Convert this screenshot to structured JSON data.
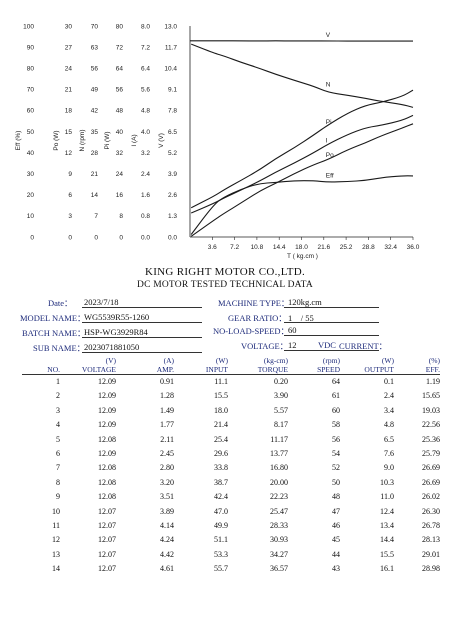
{
  "chart_data": {
    "type": "line",
    "x_axis": {
      "label": "T ( kg.cm )",
      "ticks": [
        "3.6",
        "7.2",
        "10.8",
        "14.4",
        "18.0",
        "21.6",
        "25.2",
        "28.8",
        "32.4",
        "36.0"
      ],
      "range": [
        0,
        36
      ]
    },
    "y_axes": [
      {
        "name": "Eff (%)",
        "ticks": [
          "0",
          "10",
          "20",
          "30",
          "40",
          "50",
          "60",
          "70",
          "80",
          "90",
          "100"
        ]
      },
      {
        "name": "Po (W)",
        "ticks": [
          "0",
          "3",
          "6",
          "9",
          "12",
          "15",
          "18",
          "21",
          "24",
          "27",
          "30"
        ]
      },
      {
        "name": "N (rpm)",
        "ticks": [
          "0",
          "7",
          "14",
          "21",
          "28",
          "35",
          "42",
          "49",
          "56",
          "63",
          "70"
        ]
      },
      {
        "name": "Pi (W)",
        "ticks": [
          "0",
          "8",
          "16",
          "24",
          "32",
          "40",
          "48",
          "56",
          "64",
          "72",
          "80"
        ]
      },
      {
        "name": "I (A)",
        "ticks": [
          "0.0",
          "0.8",
          "1.6",
          "2.4",
          "3.2",
          "4.0",
          "4.8",
          "5.6",
          "6.4",
          "7.2",
          "8.0"
        ]
      },
      {
        "name": "V (V)",
        "ticks": [
          "0.0",
          "1.3",
          "2.6",
          "3.9",
          "5.2",
          "6.5",
          "7.8",
          "9.1",
          "10.4",
          "11.7",
          "13.0"
        ]
      }
    ],
    "grid": false,
    "series": [
      {
        "name": "V",
        "axis": "V (V)",
        "x": [
          0.2,
          3.9,
          5.57,
          8.17,
          11.17,
          13.77,
          16.8,
          20.0,
          22.23,
          25.47,
          28.33,
          30.93,
          34.27,
          36.57
        ],
        "y": [
          12.09,
          12.09,
          12.09,
          12.09,
          12.08,
          12.09,
          12.08,
          12.08,
          12.08,
          12.07,
          12.07,
          12.07,
          12.07,
          12.07
        ]
      },
      {
        "name": "N",
        "axis": "N (rpm)",
        "x": [
          0.2,
          3.9,
          5.57,
          8.17,
          11.17,
          13.77,
          16.8,
          20.0,
          22.23,
          25.47,
          28.33,
          30.93,
          34.27,
          36.57
        ],
        "y": [
          64,
          61,
          60,
          58,
          56,
          54,
          52,
          50,
          48,
          47,
          46,
          45,
          44,
          43
        ]
      },
      {
        "name": "Pi",
        "axis": "Pi (W)",
        "x": [
          0.2,
          3.9,
          5.57,
          8.17,
          11.17,
          13.77,
          16.8,
          20.0,
          22.23,
          25.47,
          28.33,
          30.93,
          34.27,
          36.57
        ],
        "y": [
          11.1,
          15.5,
          18.0,
          21.4,
          25.4,
          29.6,
          33.8,
          38.7,
          42.4,
          47.0,
          49.9,
          51.1,
          53.3,
          55.7
        ]
      },
      {
        "name": "I",
        "axis": "I (A)",
        "x": [
          0.2,
          3.9,
          5.57,
          8.17,
          11.17,
          13.77,
          16.8,
          20.0,
          22.23,
          25.47,
          28.33,
          30.93,
          34.27,
          36.57
        ],
        "y": [
          0.91,
          1.28,
          1.49,
          1.77,
          2.11,
          2.45,
          2.8,
          3.2,
          3.51,
          3.89,
          4.14,
          4.24,
          4.42,
          4.61
        ]
      },
      {
        "name": "Po",
        "axis": "Po (W)",
        "x": [
          0.2,
          3.9,
          5.57,
          8.17,
          11.17,
          13.77,
          16.8,
          20.0,
          22.23,
          25.47,
          28.33,
          30.93,
          34.27,
          36.57
        ],
        "y": [
          0.1,
          2.4,
          3.4,
          4.8,
          6.5,
          7.6,
          9.0,
          10.3,
          11.0,
          12.4,
          13.4,
          14.4,
          15.5,
          16.1
        ]
      },
      {
        "name": "Eff",
        "axis": "Eff (%)",
        "x": [
          0.2,
          3.9,
          5.57,
          8.17,
          11.17,
          13.77,
          16.8,
          20.0,
          22.23,
          25.47,
          28.33,
          30.93,
          34.27,
          36.57
        ],
        "y": [
          1.19,
          15.65,
          19.03,
          22.56,
          25.36,
          25.79,
          26.69,
          26.69,
          26.02,
          26.3,
          26.78,
          28.13,
          29.01,
          28.98
        ]
      }
    ]
  },
  "header": {
    "company": "KING RIGHT MOTOR CO.,LTD.",
    "subtitle": "DC MOTOR TESTED TECHNICAL DATA"
  },
  "info": {
    "date_label": "Date：",
    "date_value": "2023/7/18",
    "model_label": "MODEL NAME：",
    "model_value": "WG5539R55-1260",
    "batch_label": "BATCH NAME：",
    "batch_value": "HSP-WG3929R84",
    "sub_label": "SUB NAME：",
    "sub_value": "2023071881050",
    "machine_label": "MACHINE TYPE：",
    "machine_value": "120kg.cm",
    "gear_label": "GEAR RATIO：",
    "gear_value": "1　/ 55",
    "noload_label": "NO-LOAD-SPEED：",
    "noload_value": "60",
    "voltage_label": "VOLTAGE：",
    "voltage_value": "12",
    "vdc_label": "VDC",
    "current_label": "CURRENT："
  },
  "table": {
    "units": [
      "(V)",
      "(A)",
      "(W)",
      "(kg-cm)",
      "(rpm)",
      "(W)",
      "(%)"
    ],
    "headers": [
      "NO.",
      "VOLTAGE",
      "AMP.",
      "INPUT",
      "TORQUE",
      "SPEED",
      "OUTPUT",
      "EFF."
    ],
    "rows": [
      [
        "1",
        "12.09",
        "0.91",
        "11.1",
        "0.20",
        "64",
        "0.1",
        "1.19"
      ],
      [
        "2",
        "12.09",
        "1.28",
        "15.5",
        "3.90",
        "61",
        "2.4",
        "15.65"
      ],
      [
        "3",
        "12.09",
        "1.49",
        "18.0",
        "5.57",
        "60",
        "3.4",
        "19.03"
      ],
      [
        "4",
        "12.09",
        "1.77",
        "21.4",
        "8.17",
        "58",
        "4.8",
        "22.56"
      ],
      [
        "5",
        "12.08",
        "2.11",
        "25.4",
        "11.17",
        "56",
        "6.5",
        "25.36"
      ],
      [
        "6",
        "12.09",
        "2.45",
        "29.6",
        "13.77",
        "54",
        "7.6",
        "25.79"
      ],
      [
        "7",
        "12.08",
        "2.80",
        "33.8",
        "16.80",
        "52",
        "9.0",
        "26.69"
      ],
      [
        "8",
        "12.08",
        "3.20",
        "38.7",
        "20.00",
        "50",
        "10.3",
        "26.69"
      ],
      [
        "9",
        "12.08",
        "3.51",
        "42.4",
        "22.23",
        "48",
        "11.0",
        "26.02"
      ],
      [
        "10",
        "12.07",
        "3.89",
        "47.0",
        "25.47",
        "47",
        "12.4",
        "26.30"
      ],
      [
        "11",
        "12.07",
        "4.14",
        "49.9",
        "28.33",
        "46",
        "13.4",
        "26.78"
      ],
      [
        "12",
        "12.07",
        "4.24",
        "51.1",
        "30.93",
        "45",
        "14.4",
        "28.13"
      ],
      [
        "13",
        "12.07",
        "4.42",
        "53.3",
        "34.27",
        "44",
        "15.5",
        "29.01"
      ],
      [
        "14",
        "12.07",
        "4.61",
        "55.7",
        "36.57",
        "43",
        "16.1",
        "28.98"
      ]
    ]
  }
}
